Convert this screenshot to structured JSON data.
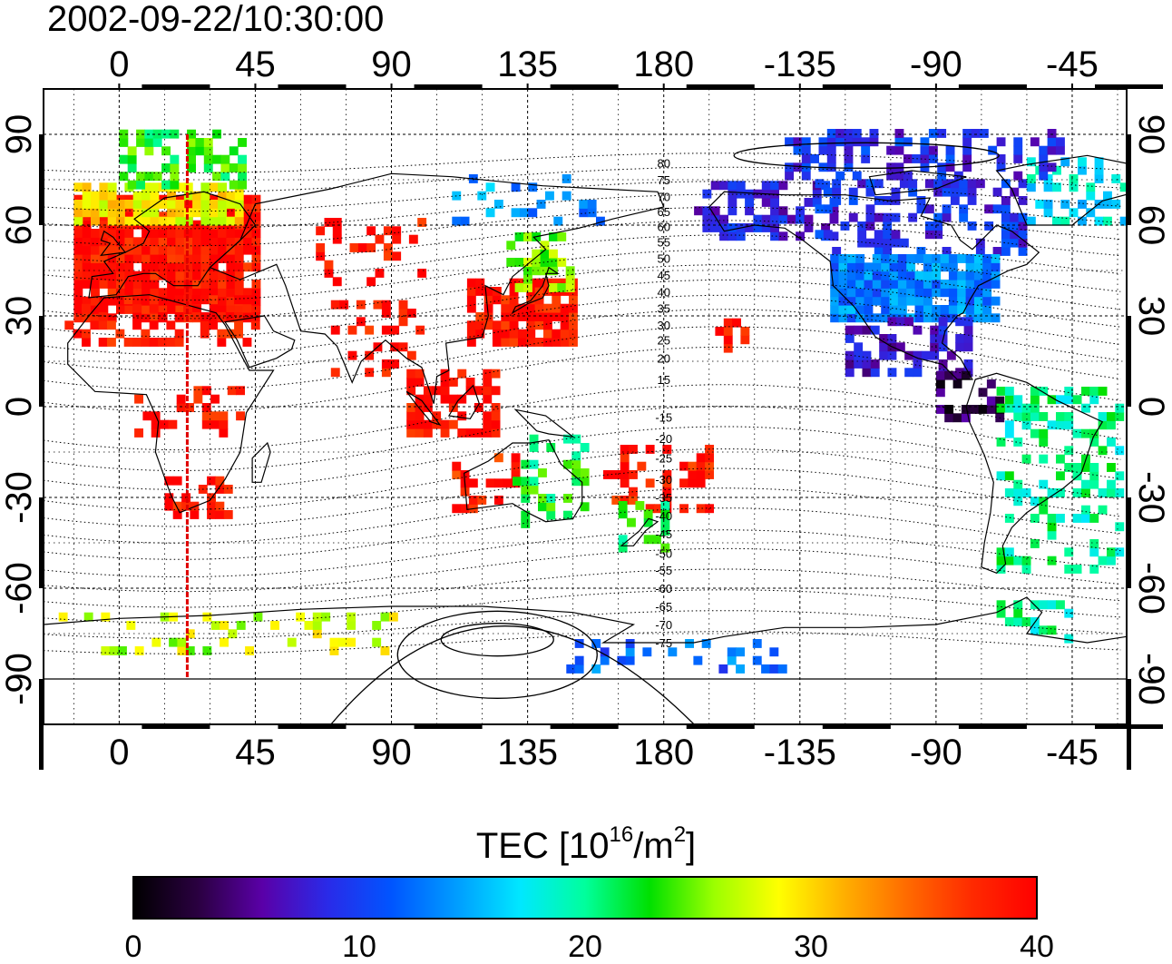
{
  "timestamp": "2002-09-22/10:30:00",
  "x_ticks": [
    {
      "label": "0",
      "lon": 0
    },
    {
      "label": "45",
      "lon": 45
    },
    {
      "label": "90",
      "lon": 90
    },
    {
      "label": "135",
      "lon": 135
    },
    {
      "label": "180",
      "lon": 180
    },
    {
      "label": "-135",
      "lon": 225
    },
    {
      "label": "-90",
      "lon": 270
    },
    {
      "label": "-45",
      "lon": 315
    }
  ],
  "y_ticks": [
    {
      "label": "90",
      "lat": 90
    },
    {
      "label": "60",
      "lat": 60
    },
    {
      "label": "30",
      "lat": 30
    },
    {
      "label": "0",
      "lat": 0
    },
    {
      "label": "-30",
      "lat": -30
    },
    {
      "label": "-60",
      "lat": -60
    },
    {
      "label": "-90",
      "lat": -90
    }
  ],
  "map_extent": {
    "lon_min": -25,
    "lon_max": 333,
    "lat_min": -105,
    "lat_max": 105
  },
  "magnetic_latitude_labels": [
    {
      "label": "80",
      "lat": 80.5
    },
    {
      "label": "75",
      "lat": 75
    },
    {
      "label": "70",
      "lat": 69.5
    },
    {
      "label": "65",
      "lat": 64.5
    },
    {
      "label": "60",
      "lat": 59.5
    },
    {
      "label": "55",
      "lat": 54.5
    },
    {
      "label": "50",
      "lat": 49
    },
    {
      "label": "45",
      "lat": 43.5
    },
    {
      "label": "40",
      "lat": 38
    },
    {
      "label": "35",
      "lat": 32.5
    },
    {
      "label": "30",
      "lat": 27
    },
    {
      "label": "25",
      "lat": 22
    },
    {
      "label": "20",
      "lat": 16
    },
    {
      "label": "15",
      "lat": 9
    },
    {
      "label": "-15",
      "lat": -3.5
    },
    {
      "label": "-20",
      "lat": -10.5
    },
    {
      "label": "-25",
      "lat": -17
    },
    {
      "label": "-30",
      "lat": -24
    },
    {
      "label": "-35",
      "lat": -30
    },
    {
      "label": "-40",
      "lat": -36
    },
    {
      "label": "-45",
      "lat": -42
    },
    {
      "label": "-50",
      "lat": -48.5
    },
    {
      "label": "-55",
      "lat": -54
    },
    {
      "label": "-60",
      "lat": -60
    },
    {
      "label": "-65",
      "lat": -66
    },
    {
      "label": "-70",
      "lat": -72
    },
    {
      "label": "-75",
      "lat": -78
    }
  ],
  "meridian_marker": {
    "lon": 22.5,
    "color": "#e00000"
  },
  "colorbar": {
    "title_prefix": "TEC  [10",
    "title_exp": "16",
    "title_mid": "/m",
    "title_exp2": "2",
    "title_suffix": "]",
    "min": 0,
    "max": 40,
    "ticks": [
      {
        "label": "0",
        "value": 0
      },
      {
        "label": "10",
        "value": 10
      },
      {
        "label": "20",
        "value": 20
      },
      {
        "label": "30",
        "value": 30
      },
      {
        "label": "40",
        "value": 40
      }
    ],
    "colors": [
      "#000000",
      "#2a0040",
      "#5a00a8",
      "#2a2ae8",
      "#0055ff",
      "#009cff",
      "#00e8ff",
      "#00ff9c",
      "#00e000",
      "#9cff00",
      "#ffff00",
      "#ffb000",
      "#ff6a00",
      "#ff2a00",
      "#ff0000"
    ]
  },
  "tec_regions": [
    {
      "name": "europe",
      "lon": [
        -15,
        45
      ],
      "lat": [
        28,
        68
      ],
      "tec": 39,
      "density": 0.95
    },
    {
      "name": "scandinavia",
      "lon": [
        -15,
        40
      ],
      "lat": [
        60,
        72
      ],
      "tec": 29,
      "density": 0.8
    },
    {
      "name": "arctic-atlantic",
      "lon": [
        0,
        40
      ],
      "lat": [
        72,
        90
      ],
      "tec": 23,
      "density": 0.5
    },
    {
      "name": "north-africa",
      "lon": [
        -18,
        45
      ],
      "lat": [
        20,
        35
      ],
      "tec": 39,
      "density": 0.45
    },
    {
      "name": "central-africa",
      "lon": [
        5,
        40
      ],
      "lat": [
        -10,
        5
      ],
      "tec": 39,
      "density": 0.25
    },
    {
      "name": "south-africa",
      "lon": [
        15,
        35
      ],
      "lat": [
        -37,
        -25
      ],
      "tec": 39,
      "density": 0.55
    },
    {
      "name": "central-asia",
      "lon": [
        65,
        100
      ],
      "lat": [
        40,
        60
      ],
      "tec": 39,
      "density": 0.35
    },
    {
      "name": "india",
      "lon": [
        70,
        100
      ],
      "lat": [
        10,
        35
      ],
      "tec": 39,
      "density": 0.25
    },
    {
      "name": "east-asia",
      "lon": [
        115,
        150
      ],
      "lat": [
        20,
        42
      ],
      "tec": 39,
      "density": 0.75
    },
    {
      "name": "japan-north",
      "lon": [
        128,
        150
      ],
      "lat": [
        38,
        55
      ],
      "tec": 25,
      "density": 0.65
    },
    {
      "name": "indonesia",
      "lon": [
        95,
        125
      ],
      "lat": [
        -10,
        10
      ],
      "tec": 39,
      "density": 0.55
    },
    {
      "name": "siberia",
      "lon": [
        110,
        160
      ],
      "lat": [
        60,
        75
      ],
      "tec": 14,
      "density": 0.25
    },
    {
      "name": "australia-west",
      "lon": [
        110,
        130
      ],
      "lat": [
        -35,
        -18
      ],
      "tec": 38,
      "density": 0.3
    },
    {
      "name": "australia-east",
      "lon": [
        130,
        155
      ],
      "lat": [
        -40,
        -10
      ],
      "tec": 22,
      "density": 0.3
    },
    {
      "name": "pacific-south",
      "lon": [
        160,
        195
      ],
      "lat": [
        -35,
        -15
      ],
      "tec": 38,
      "density": 0.4
    },
    {
      "name": "new-zealand",
      "lon": [
        165,
        180
      ],
      "lat": [
        -48,
        -33
      ],
      "tec": 22,
      "density": 0.4
    },
    {
      "name": "hawaii",
      "lon": [
        197,
        207
      ],
      "lat": [
        18,
        28
      ],
      "tec": 38,
      "density": 0.6
    },
    {
      "name": "alaska",
      "lon": [
        190,
        235
      ],
      "lat": [
        55,
        72
      ],
      "tec": 8,
      "density": 0.6
    },
    {
      "name": "canada",
      "lon": [
        230,
        300
      ],
      "lat": [
        50,
        75
      ],
      "tec": 9,
      "density": 0.45
    },
    {
      "name": "greenland",
      "lon": [
        300,
        333
      ],
      "lat": [
        60,
        80
      ],
      "tec": 17,
      "density": 0.35
    },
    {
      "name": "usa",
      "lon": [
        235,
        290
      ],
      "lat": [
        28,
        50
      ],
      "tec": 13,
      "density": 0.95
    },
    {
      "name": "mexico",
      "lon": [
        240,
        280
      ],
      "lat": [
        10,
        28
      ],
      "tec": 7,
      "density": 0.5
    },
    {
      "name": "central-america",
      "lon": [
        270,
        290
      ],
      "lat": [
        -5,
        10
      ],
      "tec": 3,
      "density": 0.35
    },
    {
      "name": "arctic-canada",
      "lon": [
        220,
        310
      ],
      "lat": [
        75,
        90
      ],
      "tec": 9,
      "density": 0.4
    },
    {
      "name": "south-america",
      "lon": [
        290,
        330
      ],
      "lat": [
        -55,
        5
      ],
      "tec": 20,
      "density": 0.3
    },
    {
      "name": "antarctic-peninsula",
      "lon": [
        290,
        315
      ],
      "lat": [
        -78,
        -65
      ],
      "tec": 20,
      "density": 0.5
    },
    {
      "name": "antarctica-east",
      "lon": [
        -20,
        90
      ],
      "lat": [
        -82,
        -70
      ],
      "tec": 27,
      "density": 0.2
    },
    {
      "name": "antarctica-ross",
      "lon": [
        145,
        220
      ],
      "lat": [
        -88,
        -78
      ],
      "tec": 12,
      "density": 0.3
    }
  ]
}
